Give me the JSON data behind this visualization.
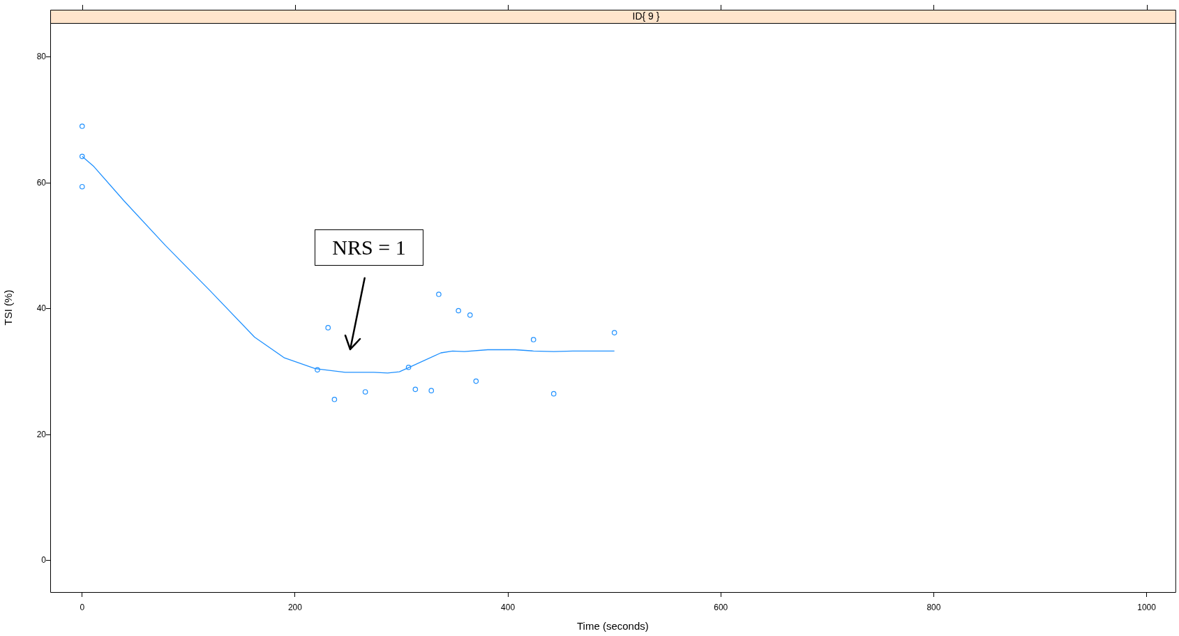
{
  "chart_data": {
    "type": "scatter",
    "title": "ID{ 9 }",
    "xlabel": "Time (seconds)",
    "ylabel": "TSI (%)",
    "xlim": [
      -30,
      1027
    ],
    "ylim": [
      -5,
      85.4
    ],
    "xticks": [
      0,
      200,
      400,
      600,
      800,
      1000
    ],
    "yticks": [
      0,
      20,
      40,
      60,
      80
    ],
    "grid": false,
    "legend": false,
    "marker": "circle",
    "series": [
      {
        "type": "scatter",
        "color": "#1e90ff",
        "x": [
          0,
          0,
          0,
          221,
          231,
          237,
          266,
          306.6,
          313,
          328,
          335,
          353.5,
          364.4,
          370,
          424,
          443,
          500
        ],
        "values": [
          69.0,
          64.2,
          59.4,
          30.3,
          37.0,
          25.6,
          26.8,
          30.7,
          27.2,
          27.0,
          42.3,
          39.7,
          39.0,
          28.5,
          35.1,
          26.5,
          36.2
        ]
      },
      {
        "type": "line",
        "color": "#1e90ff",
        "marker": "none",
        "x": [
          0,
          11,
          39,
          78,
          120,
          162,
          190,
          219,
          247,
          274,
          287,
          298,
          306,
          337,
          348,
          359,
          381,
          407,
          424,
          443,
          461,
          500
        ],
        "values": [
          64.2,
          62.6,
          57.2,
          50.1,
          42.9,
          35.5,
          32.2,
          30.5,
          29.9,
          29.9,
          29.8,
          30.0,
          30.6,
          33.0,
          33.3,
          33.2,
          33.5,
          33.5,
          33.3,
          33.2,
          33.3,
          33.3
        ]
      }
    ],
    "annotations": [
      "NRS = 1"
    ]
  }
}
